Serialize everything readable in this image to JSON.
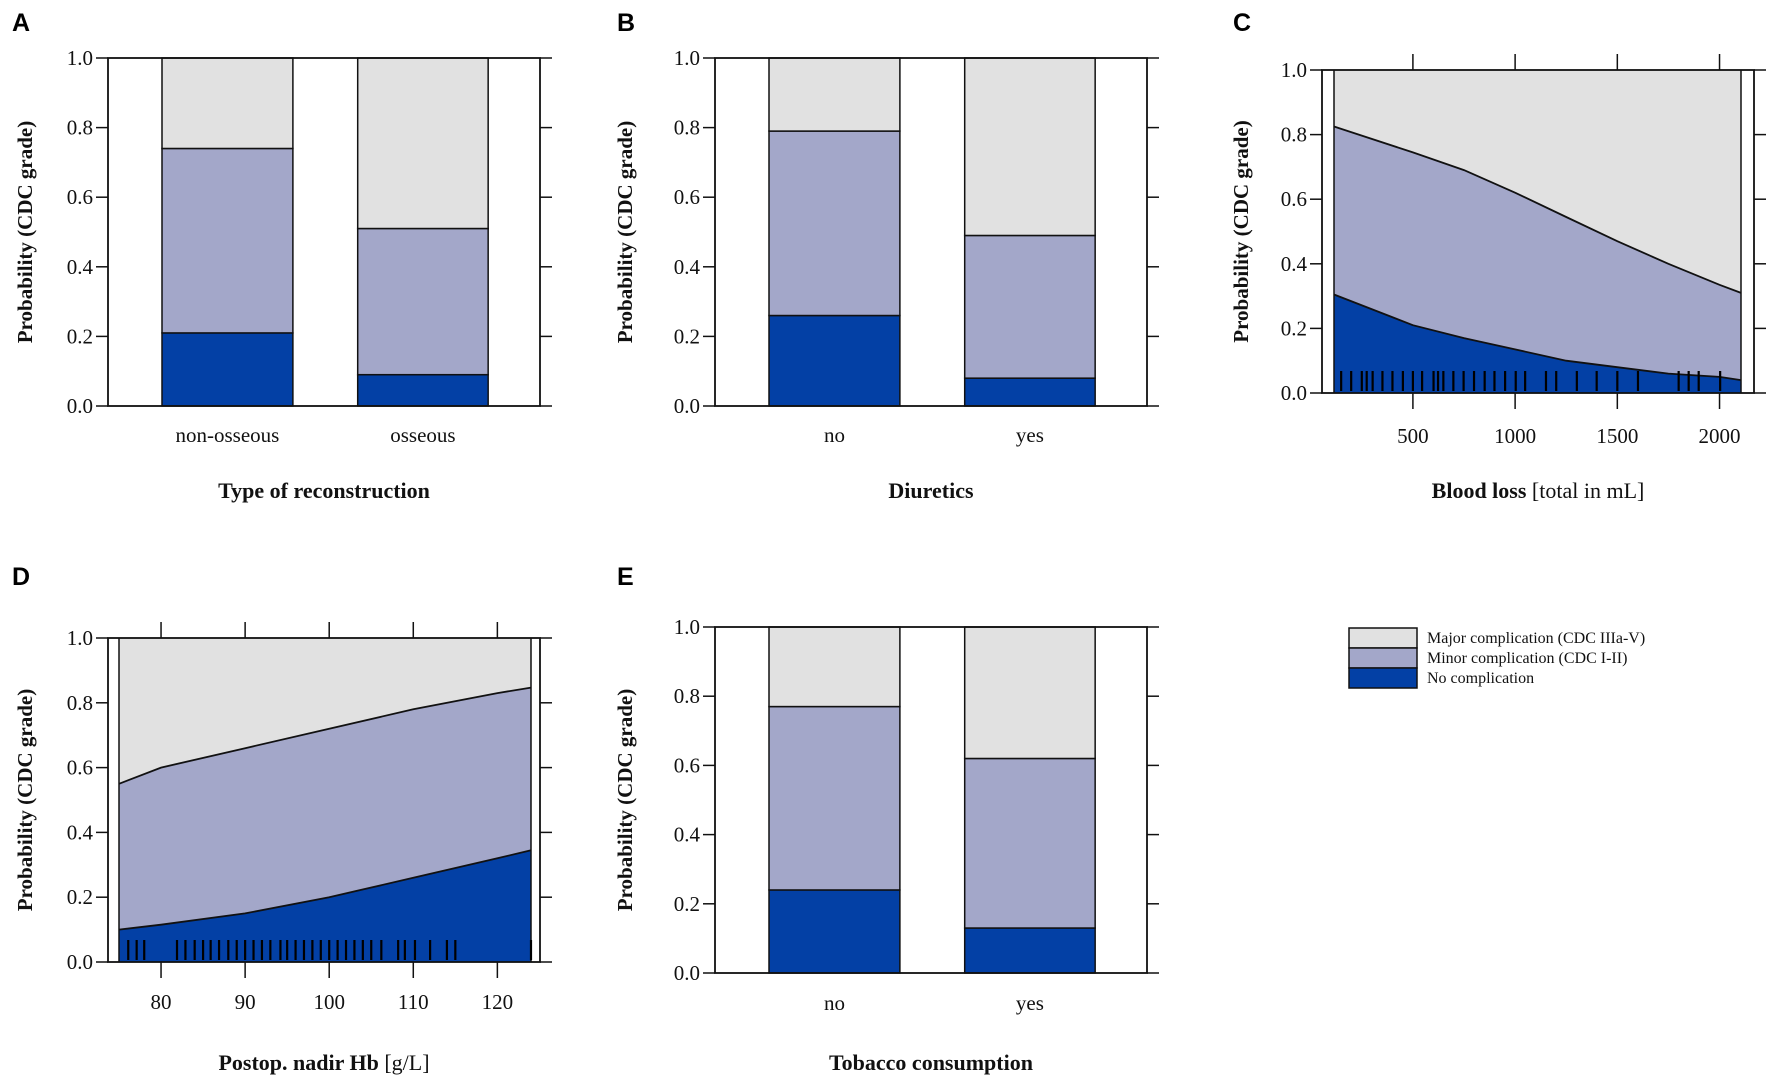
{
  "colors": {
    "major": "#e1e1e1",
    "minor": "#a3a7c9",
    "none": "#0340a5"
  },
  "legend": [
    {
      "label": "Major complication (CDC IIIa-V)",
      "color": "#e1e1e1"
    },
    {
      "label": "Minor complication (CDC I-II)",
      "color": "#a3a7c9"
    },
    {
      "label": "No complication",
      "color": "#0340a5"
    }
  ],
  "chart_data": [
    {
      "panel": "A",
      "type": "bar",
      "stacked": true,
      "categories": [
        "non-osseous",
        "osseous"
      ],
      "series": [
        {
          "name": "No complication",
          "values": [
            0.21,
            0.09
          ]
        },
        {
          "name": "Minor complication (CDC I-II)",
          "values": [
            0.53,
            0.42
          ]
        },
        {
          "name": "Major complication (CDC IIIa-V)",
          "values": [
            0.26,
            0.49
          ]
        }
      ],
      "ylabel": "Probability (CDC grade)",
      "xlabel_bold": "Type of reconstruction",
      "xlabel_unit": "",
      "ylim": [
        0,
        1
      ],
      "yticks": [
        "0.0",
        "0.2",
        "0.4",
        "0.6",
        "0.8",
        "1.0"
      ]
    },
    {
      "panel": "B",
      "type": "bar",
      "stacked": true,
      "categories": [
        "no",
        "yes"
      ],
      "series": [
        {
          "name": "No complication",
          "values": [
            0.26,
            0.08
          ]
        },
        {
          "name": "Minor complication (CDC I-II)",
          "values": [
            0.53,
            0.41
          ]
        },
        {
          "name": "Major complication (CDC IIIa-V)",
          "values": [
            0.21,
            0.51
          ]
        }
      ],
      "ylabel": "Probability (CDC grade)",
      "xlabel_bold": "Diuretics",
      "xlabel_unit": "",
      "ylim": [
        0,
        1
      ],
      "yticks": [
        "0.0",
        "0.2",
        "0.4",
        "0.6",
        "0.8",
        "1.0"
      ]
    },
    {
      "panel": "C",
      "type": "area",
      "stacked": true,
      "x": [
        114,
        500,
        750,
        1000,
        1250,
        1500,
        1750,
        2000,
        2105
      ],
      "cum_none": [
        0.305,
        0.21,
        0.17,
        0.135,
        0.1,
        0.08,
        0.06,
        0.05,
        0.04
      ],
      "cum_minor": [
        0.825,
        0.745,
        0.69,
        0.62,
        0.545,
        0.47,
        0.4,
        0.335,
        0.31
      ],
      "rug": [
        149,
        198,
        250,
        274,
        303,
        351,
        400,
        451,
        500,
        545,
        601,
        623,
        649,
        698,
        748,
        799,
        851,
        899,
        951,
        1003,
        1049,
        1151,
        1201,
        1302,
        1399,
        1500,
        1601,
        1800,
        1849,
        1898,
        2003
      ],
      "ylabel": "Probability (CDC grade)",
      "xlabel_bold": "Blood loss",
      "xlabel_unit": " [total in mL]",
      "xlim": [
        114,
        2105
      ],
      "xticks": [
        "500",
        "1000",
        "1500",
        "2000"
      ],
      "ylim": [
        0,
        1
      ],
      "yticks": [
        "0.0",
        "0.2",
        "0.4",
        "0.6",
        "0.8",
        "1.0"
      ]
    },
    {
      "panel": "D",
      "type": "area",
      "stacked": true,
      "x": [
        75,
        80,
        90,
        100,
        110,
        120,
        124
      ],
      "cum_none": [
        0.1,
        0.115,
        0.15,
        0.2,
        0.26,
        0.32,
        0.345
      ],
      "cum_minor": [
        0.55,
        0.6,
        0.66,
        0.72,
        0.78,
        0.83,
        0.847
      ],
      "rug": [
        76.1,
        77.1,
        78,
        81.9,
        82.9,
        84,
        85,
        85.9,
        86.9,
        88,
        89,
        90,
        91,
        92,
        93,
        94.2,
        95,
        96,
        97,
        98,
        99,
        100,
        101,
        102,
        103,
        104,
        105,
        106.2,
        108.2,
        109,
        110.2,
        112,
        114,
        115,
        124
      ],
      "ylabel": "Probability (CDC grade)",
      "xlabel_bold": "Postop. nadir Hb",
      "xlabel_unit": " [g/L]",
      "xlim": [
        75,
        124
      ],
      "xticks": [
        "80",
        "90",
        "100",
        "110",
        "120"
      ],
      "ylim": [
        0,
        1
      ],
      "yticks": [
        "0.0",
        "0.2",
        "0.4",
        "0.6",
        "0.8",
        "1.0"
      ]
    },
    {
      "panel": "E",
      "type": "bar",
      "stacked": true,
      "categories": [
        "no",
        "yes"
      ],
      "series": [
        {
          "name": "No complication",
          "values": [
            0.24,
            0.13
          ]
        },
        {
          "name": "Minor complication (CDC I-II)",
          "values": [
            0.53,
            0.49
          ]
        },
        {
          "name": "Major complication (CDC IIIa-V)",
          "values": [
            0.23,
            0.38
          ]
        }
      ],
      "ylabel": "Probability (CDC grade)",
      "xlabel_bold": "Tobacco consumption",
      "xlabel_unit": "",
      "ylim": [
        0,
        1
      ],
      "yticks": [
        "0.0",
        "0.2",
        "0.4",
        "0.6",
        "0.8",
        "1.0"
      ]
    }
  ]
}
